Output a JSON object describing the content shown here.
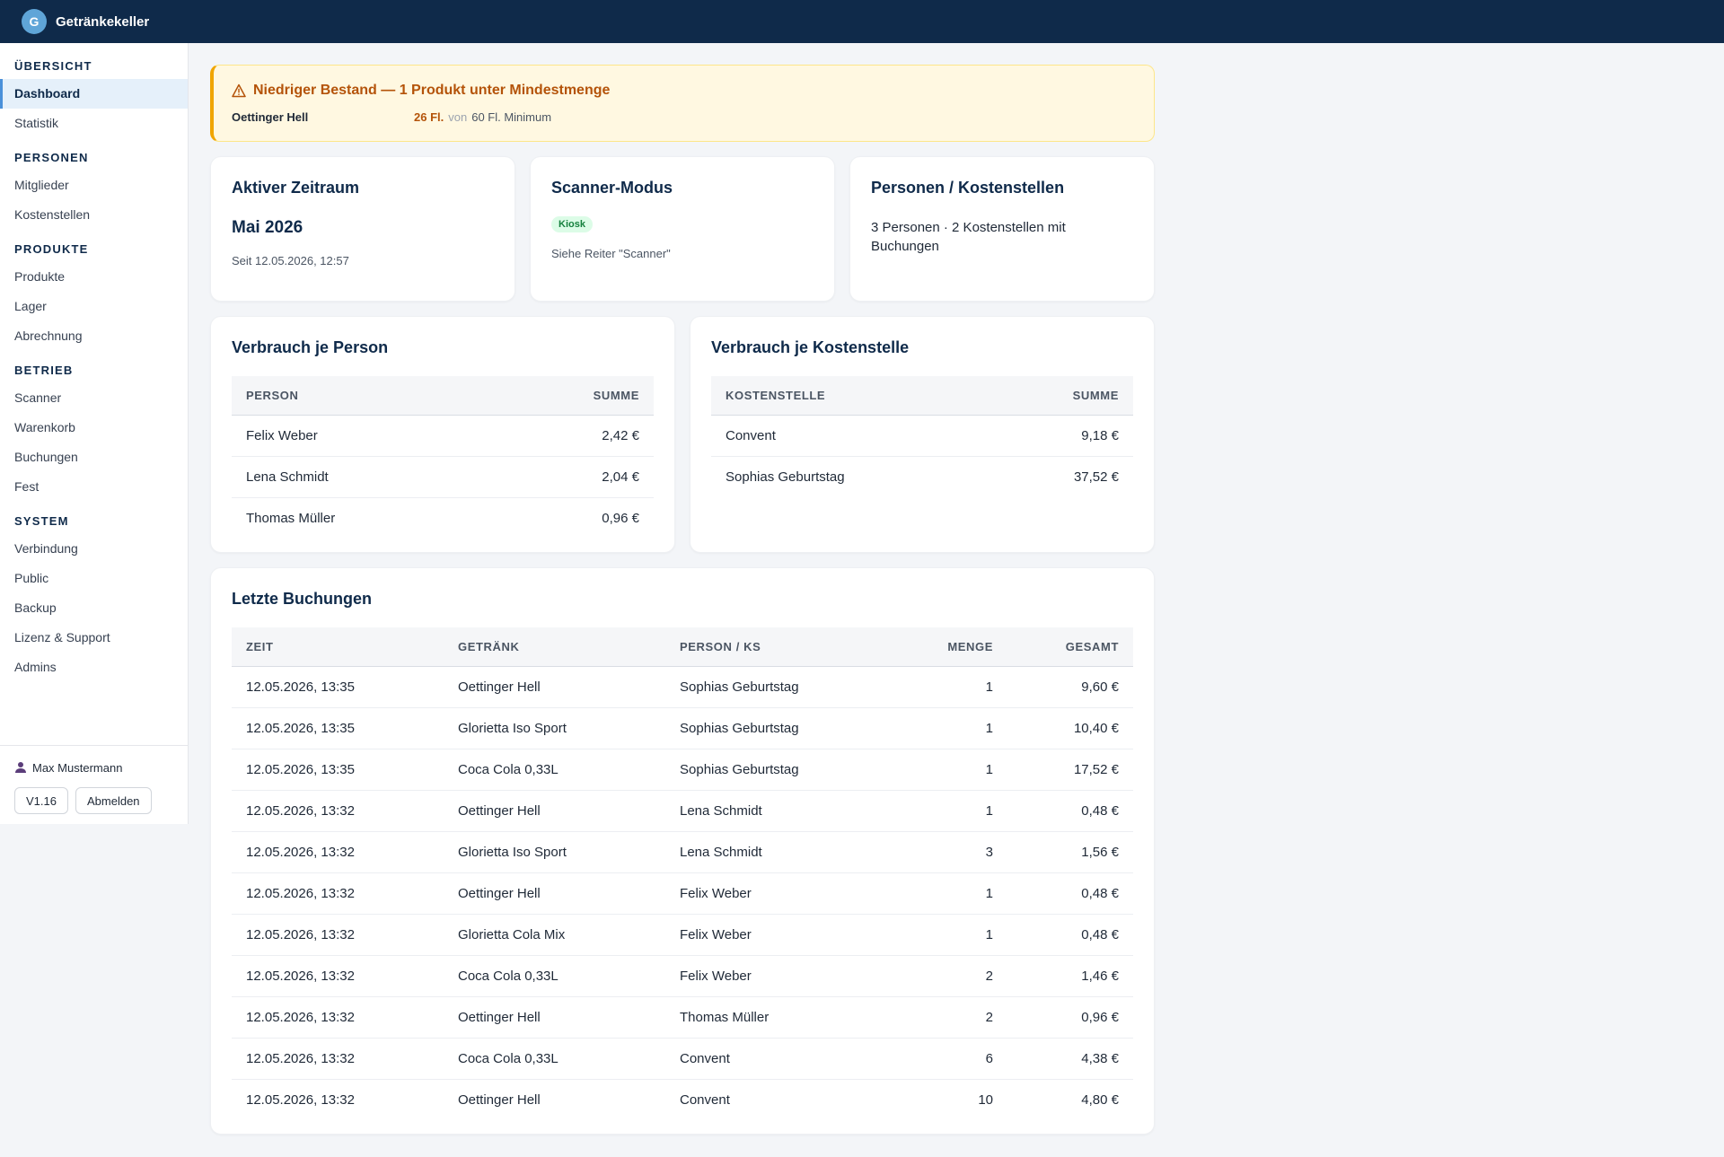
{
  "header": {
    "logo_letter": "G",
    "title": "Getränkekeller"
  },
  "sidebar": {
    "sections": [
      {
        "label": "ÜBERSICHT",
        "items": [
          "Dashboard",
          "Statistik"
        ]
      },
      {
        "label": "PERSONEN",
        "items": [
          "Mitglieder",
          "Kostenstellen"
        ]
      },
      {
        "label": "PRODUKTE",
        "items": [
          "Produkte",
          "Lager",
          "Abrechnung"
        ]
      },
      {
        "label": "BETRIEB",
        "items": [
          "Scanner",
          "Warenkorb",
          "Buchungen",
          "Fest"
        ]
      },
      {
        "label": "SYSTEM",
        "items": [
          "Verbindung",
          "Public",
          "Backup",
          "Lizenz & Support",
          "Admins"
        ]
      }
    ],
    "active_item": "Dashboard",
    "user": {
      "name": "Max Mustermann",
      "icon": "user-icon"
    },
    "version_label": "V1.16",
    "logout_label": "Abmelden"
  },
  "alert": {
    "icon": "warning-icon",
    "title": "Niedriger Bestand — 1 Produkt unter Mindestmenge",
    "product": "Oettinger Hell",
    "current": "26 Fl.",
    "von": "von",
    "minimum": "60 Fl. Minimum"
  },
  "cards": {
    "period": {
      "title": "Aktiver Zeitraum",
      "value": "Mai 2026",
      "since": "Seit 12.05.2026, 12:57"
    },
    "scanner": {
      "title": "Scanner-Modus",
      "badge": "Kiosk",
      "hint": "Siehe Reiter \"Scanner\""
    },
    "persons": {
      "title": "Personen / Kostenstellen",
      "text": "3 Personen · 2 Kostenstellen mit Buchungen"
    }
  },
  "per_person": {
    "title": "Verbrauch je Person",
    "headers": [
      "PERSON",
      "SUMME"
    ],
    "rows": [
      {
        "name": "Felix Weber",
        "sum": "2,42 €"
      },
      {
        "name": "Lena Schmidt",
        "sum": "2,04 €"
      },
      {
        "name": "Thomas Müller",
        "sum": "0,96 €"
      }
    ]
  },
  "per_cost_center": {
    "title": "Verbrauch je Kostenstelle",
    "headers": [
      "KOSTENSTELLE",
      "SUMME"
    ],
    "rows": [
      {
        "name": "Convent",
        "sum": "9,18 €"
      },
      {
        "name": "Sophias Geburtstag",
        "sum": "37,52 €"
      }
    ]
  },
  "recent": {
    "title": "Letzte Buchungen",
    "headers": [
      "ZEIT",
      "GETRÄNK",
      "PERSON / KS",
      "MENGE",
      "GESAMT"
    ],
    "rows": [
      {
        "time": "12.05.2026, 13:35",
        "drink": "Oettinger Hell",
        "person": "Sophias Geburtstag",
        "qty": "1",
        "total": "9,60 €"
      },
      {
        "time": "12.05.2026, 13:35",
        "drink": "Glorietta Iso Sport",
        "person": "Sophias Geburtstag",
        "qty": "1",
        "total": "10,40 €"
      },
      {
        "time": "12.05.2026, 13:35",
        "drink": "Coca Cola 0,33L",
        "person": "Sophias Geburtstag",
        "qty": "1",
        "total": "17,52 €"
      },
      {
        "time": "12.05.2026, 13:32",
        "drink": "Oettinger Hell",
        "person": "Lena Schmidt",
        "qty": "1",
        "total": "0,48 €"
      },
      {
        "time": "12.05.2026, 13:32",
        "drink": "Glorietta Iso Sport",
        "person": "Lena Schmidt",
        "qty": "3",
        "total": "1,56 €"
      },
      {
        "time": "12.05.2026, 13:32",
        "drink": "Oettinger Hell",
        "person": "Felix Weber",
        "qty": "1",
        "total": "0,48 €"
      },
      {
        "time": "12.05.2026, 13:32",
        "drink": "Glorietta Cola Mix",
        "person": "Felix Weber",
        "qty": "1",
        "total": "0,48 €"
      },
      {
        "time": "12.05.2026, 13:32",
        "drink": "Coca Cola 0,33L",
        "person": "Felix Weber",
        "qty": "2",
        "total": "1,46 €"
      },
      {
        "time": "12.05.2026, 13:32",
        "drink": "Oettinger Hell",
        "person": "Thomas Müller",
        "qty": "2",
        "total": "0,96 €"
      },
      {
        "time": "12.05.2026, 13:32",
        "drink": "Coca Cola 0,33L",
        "person": "Convent",
        "qty": "6",
        "total": "4,38 €"
      },
      {
        "time": "12.05.2026, 13:32",
        "drink": "Oettinger Hell",
        "person": "Convent",
        "qty": "10",
        "total": "4,80 €"
      }
    ]
  }
}
